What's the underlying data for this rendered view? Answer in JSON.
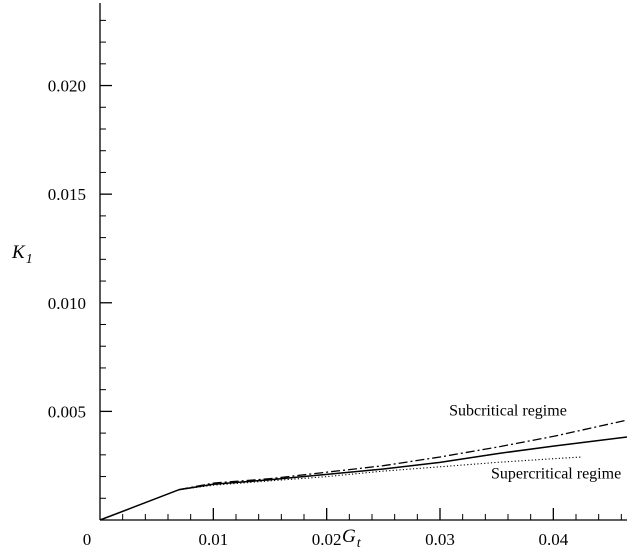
{
  "chart_data": {
    "type": "line",
    "title": "",
    "xlabel": {
      "main": "G",
      "sub": "t"
    },
    "ylabel": {
      "main": "K",
      "sub": "1"
    },
    "xlim": [
      0,
      0.0465
    ],
    "ylim": [
      0,
      0.0238
    ],
    "x_ticks": [
      {
        "value": 0,
        "label": "0"
      },
      {
        "value": 0.01,
        "label": "0.01"
      },
      {
        "value": 0.02,
        "label": "0.02"
      },
      {
        "value": 0.03,
        "label": "0.03"
      },
      {
        "value": 0.04,
        "label": "0.04"
      }
    ],
    "y_ticks": [
      {
        "value": 0.005,
        "label": "0.005"
      },
      {
        "value": 0.01,
        "label": "0.010"
      },
      {
        "value": 0.015,
        "label": "0.015"
      },
      {
        "value": 0.02,
        "label": "0.020"
      }
    ],
    "x_minor_step": 0.002,
    "y_minor_step": 0.001,
    "grid": false,
    "series": [
      {
        "style": "solid",
        "x": [
          0,
          0.007,
          0.01,
          0.015,
          0.02,
          0.025,
          0.03,
          0.035,
          0.04,
          0.0465
        ],
        "y": [
          0,
          0.0014,
          0.00165,
          0.00185,
          0.0021,
          0.00235,
          0.00265,
          0.00305,
          0.0034,
          0.00382
        ]
      },
      {
        "style": "dashdot",
        "x": [
          0.007,
          0.01,
          0.015,
          0.02,
          0.025,
          0.03,
          0.035,
          0.04,
          0.0465
        ],
        "y": [
          0.0014,
          0.0017,
          0.0019,
          0.0022,
          0.0025,
          0.0029,
          0.00335,
          0.00385,
          0.0046
        ]
      },
      {
        "style": "dotted",
        "x": [
          0.007,
          0.01,
          0.015,
          0.02,
          0.025,
          0.03,
          0.035,
          0.04,
          0.0425
        ],
        "y": [
          0.0014,
          0.0016,
          0.0018,
          0.002,
          0.00225,
          0.00245,
          0.00265,
          0.00282,
          0.0029
        ]
      }
    ],
    "annotations": [
      {
        "text": "Subcritical regime",
        "x": 0.0308,
        "y": 0.0048
      },
      {
        "text": "Supercritical regime",
        "x": 0.0345,
        "y": 0.0019
      }
    ]
  }
}
